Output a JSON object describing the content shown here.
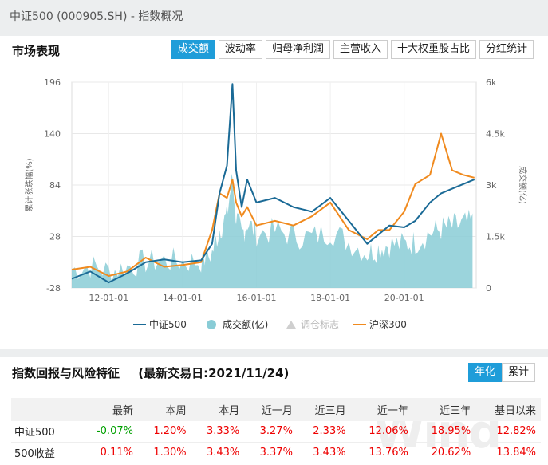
{
  "header": {
    "title": "中证500 (000905.SH) - 指数概况"
  },
  "market": {
    "title": "市场表现",
    "tabs": [
      "成交额",
      "波动率",
      "归母净利润",
      "主营收入",
      "十大权重股占比",
      "分红统计"
    ],
    "active_tab": 0
  },
  "chart_data": {
    "type": "line",
    "x_ticks": [
      "12-01-01",
      "14-01-01",
      "16-01-01",
      "18-01-01",
      "20-01-01"
    ],
    "y_left_ticks": [
      "196",
      "140",
      "84",
      "28",
      "-28"
    ],
    "y_right_ticks": [
      "6k",
      "4.5k",
      "3k",
      "1.5k",
      "0"
    ],
    "y_left_label": "累计涨跌幅(%)",
    "y_right_label": "成交额(亿)",
    "ylim_left": [
      -28,
      196
    ],
    "ylim_right": [
      0,
      6000
    ],
    "series": [
      {
        "name": "中证500",
        "color": "#1a6a96",
        "x": [
          2011.0,
          2011.5,
          2012.0,
          2012.5,
          2013.0,
          2013.5,
          2014.0,
          2014.5,
          2014.8,
          2015.0,
          2015.2,
          2015.35,
          2015.45,
          2015.6,
          2015.75,
          2016.0,
          2016.5,
          2017.0,
          2017.5,
          2018.0,
          2018.5,
          2019.0,
          2019.3,
          2019.6,
          2020.0,
          2020.3,
          2020.7,
          2021.0,
          2021.3,
          2021.6,
          2021.9
        ],
        "values": [
          -18,
          -10,
          -22,
          -12,
          0,
          3,
          0,
          2,
          20,
          75,
          105,
          194,
          100,
          60,
          90,
          65,
          70,
          60,
          55,
          70,
          45,
          20,
          30,
          40,
          38,
          45,
          65,
          75,
          80,
          85,
          90
        ]
      },
      {
        "name": "沪深300",
        "color": "#f08a1e",
        "x": [
          2011.0,
          2011.5,
          2012.0,
          2012.5,
          2013.0,
          2013.5,
          2014.0,
          2014.5,
          2014.8,
          2015.0,
          2015.2,
          2015.35,
          2015.45,
          2015.6,
          2015.75,
          2016.0,
          2016.5,
          2017.0,
          2017.5,
          2018.0,
          2018.5,
          2019.0,
          2019.3,
          2019.6,
          2020.0,
          2020.3,
          2020.7,
          2021.0,
          2021.3,
          2021.6,
          2021.9
        ],
        "values": [
          -8,
          -5,
          -15,
          -10,
          5,
          -5,
          -3,
          0,
          35,
          75,
          70,
          90,
          65,
          50,
          60,
          40,
          45,
          40,
          50,
          65,
          35,
          25,
          35,
          35,
          55,
          85,
          95,
          140,
          100,
          95,
          92
        ]
      }
    ],
    "legend": [
      {
        "name": "中证500",
        "color": "#1a6a96",
        "symbol": "line"
      },
      {
        "name": "成交额(亿)",
        "color": "#89ccd6",
        "symbol": "circle"
      },
      {
        "name": "调仓标志",
        "color": "#cfcfcf",
        "symbol": "triangle"
      },
      {
        "name": "沪深300",
        "color": "#f08a1e",
        "symbol": "line"
      }
    ]
  },
  "returns": {
    "title": "指数回报与风险特征",
    "date_label": "(最新交易日:2021/11/24)",
    "toggle": [
      "年化",
      "累计"
    ],
    "columns": [
      "",
      "最新",
      "本周",
      "本月",
      "近一月",
      "近三月",
      "近一年",
      "近三年",
      "基日以来"
    ],
    "rows": [
      {
        "name": "中证500",
        "cells": [
          "-0.07%",
          "1.20%",
          "3.33%",
          "3.27%",
          "2.33%",
          "12.06%",
          "18.95%",
          "12.82%"
        ]
      },
      {
        "name": "500收益",
        "cells": [
          "0.11%",
          "1.30%",
          "3.43%",
          "3.37%",
          "3.43%",
          "13.76%",
          "20.62%",
          "13.84%"
        ]
      }
    ]
  }
}
